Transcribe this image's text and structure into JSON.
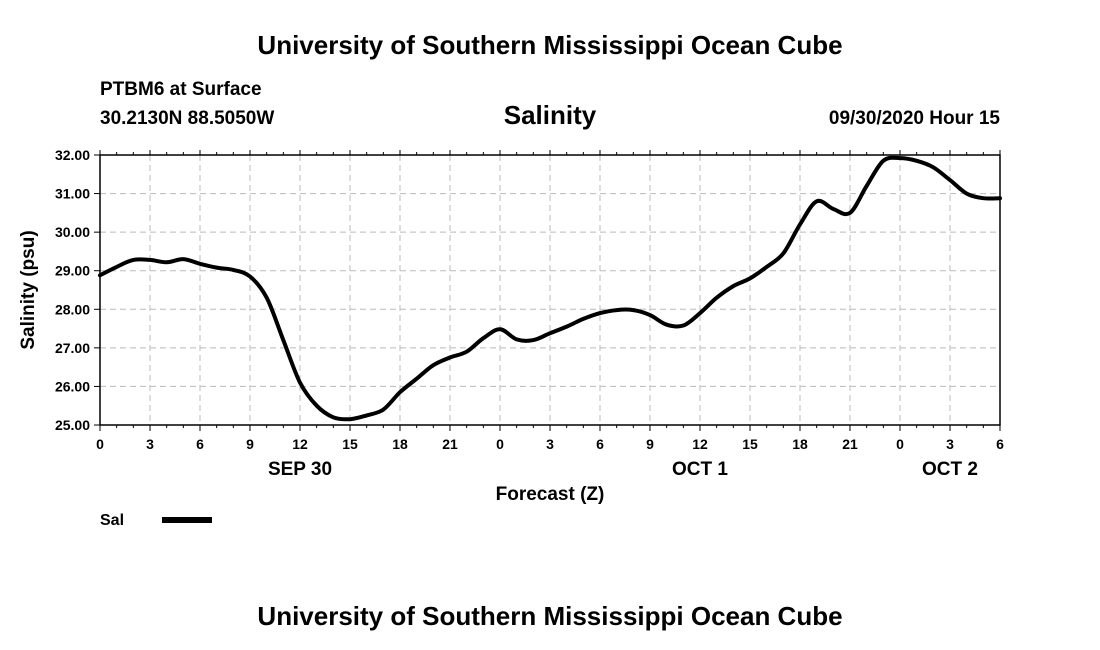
{
  "header": {
    "title_top": "University of Southern Mississippi Ocean Cube",
    "station": "PTBM6 at Surface",
    "coords": "30.2130N 88.5050W",
    "datetime": "09/30/2020 Hour 15",
    "title_bottom": "University of Southern Mississippi Ocean Cube"
  },
  "legend": {
    "label": "Sal"
  },
  "colors": {
    "line": "#000000",
    "grid": "#bbbbbb"
  },
  "chart_data": {
    "type": "line",
    "title": "Salinity",
    "xlabel": "Forecast (Z)",
    "ylabel": "Salinity (psu)",
    "ylim": [
      25,
      32
    ],
    "xlim": [
      0,
      54
    ],
    "grid": true,
    "y_ticks": [
      "25.00",
      "26.00",
      "27.00",
      "28.00",
      "29.00",
      "30.00",
      "31.00",
      "32.00"
    ],
    "x_ticks": [
      {
        "h": 0,
        "label": "0"
      },
      {
        "h": 3,
        "label": "3"
      },
      {
        "h": 6,
        "label": "6"
      },
      {
        "h": 9,
        "label": "9"
      },
      {
        "h": 12,
        "label": "12"
      },
      {
        "h": 15,
        "label": "15"
      },
      {
        "h": 18,
        "label": "18"
      },
      {
        "h": 21,
        "label": "21"
      },
      {
        "h": 24,
        "label": "0"
      },
      {
        "h": 27,
        "label": "3"
      },
      {
        "h": 30,
        "label": "6"
      },
      {
        "h": 33,
        "label": "9"
      },
      {
        "h": 36,
        "label": "12"
      },
      {
        "h": 39,
        "label": "15"
      },
      {
        "h": 42,
        "label": "18"
      },
      {
        "h": 45,
        "label": "21"
      },
      {
        "h": 48,
        "label": "0"
      },
      {
        "h": 51,
        "label": "3"
      },
      {
        "h": 54,
        "label": "6"
      }
    ],
    "date_labels": [
      {
        "h": 12,
        "label": "SEP 30"
      },
      {
        "h": 36,
        "label": "OCT 1"
      },
      {
        "h": 51,
        "label": "OCT 2"
      }
    ],
    "series": [
      {
        "name": "Sal",
        "x": [
          0,
          1,
          2,
          3,
          4,
          5,
          6,
          7,
          8,
          9,
          10,
          11,
          12,
          13,
          14,
          15,
          16,
          17,
          18,
          19,
          20,
          21,
          22,
          23,
          24,
          25,
          26,
          27,
          28,
          29,
          30,
          31,
          32,
          33,
          34,
          35,
          36,
          37,
          38,
          39,
          40,
          41,
          42,
          43,
          44,
          45,
          46,
          47,
          48,
          49,
          50,
          51,
          52,
          53,
          54
        ],
        "values": [
          28.88,
          29.1,
          29.28,
          29.28,
          29.22,
          29.3,
          29.18,
          29.08,
          29.02,
          28.85,
          28.3,
          27.2,
          26.1,
          25.5,
          25.2,
          25.15,
          25.25,
          25.4,
          25.85,
          26.2,
          26.55,
          26.75,
          26.9,
          27.25,
          27.48,
          27.22,
          27.2,
          27.38,
          27.55,
          27.75,
          27.9,
          27.98,
          27.98,
          27.85,
          27.6,
          27.58,
          27.9,
          28.3,
          28.6,
          28.8,
          29.1,
          29.45,
          30.2,
          30.8,
          30.6,
          30.5,
          31.2,
          31.85,
          31.92,
          31.85,
          31.68,
          31.35,
          31.0,
          30.88,
          30.88
        ]
      }
    ]
  }
}
